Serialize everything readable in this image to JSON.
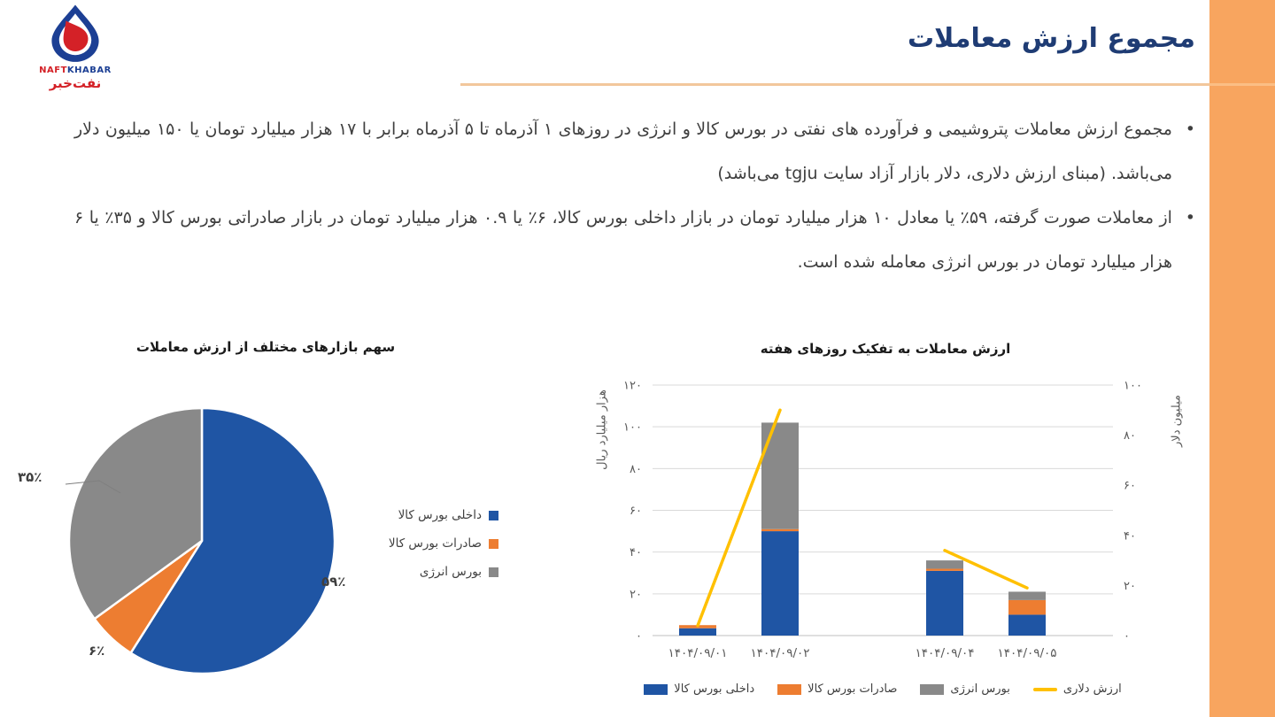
{
  "header": {
    "title": "مجموع ارزش معاملات"
  },
  "logo": {
    "text_en_1": "NAFT",
    "text_en_2": "KHABAR",
    "text_fa": "نفت‌خبر"
  },
  "bullets": [
    {
      "text": "مجموع ارزش معاملات پتروشیمی و فرآورده های نفتی در بورس کالا و انرژی در روزهای ۱ آذرماه تا ۵ آذرماه برابر با ۱۷ هزار میلیارد تومان یا ۱۵۰ میلیون دلار می‌باشد. (مبنای ارزش دلاری، دلار بازار آزاد سایت tgju می‌باشد)"
    },
    {
      "text": "از معاملات صورت گرفته، ۵۹٪ یا معادل ۱۰ هزار میلیارد تومان در بازار داخلی بورس کالا، ۶٪ یا ۰.۹ هزار میلیارد تومان در بازار صادراتی بورس کالا و ۳۵٪ یا ۶ هزار میلیارد تومان در بورس انرژی معامله شده است."
    }
  ],
  "colors": {
    "accent_orange": "#F8A55F",
    "title_navy": "#1F3C74",
    "series_blue": "#1F55A4",
    "series_orange": "#ED7D31",
    "series_gray": "#898989",
    "series_yellow": "#FFC000",
    "gridline": "#D9D9D9",
    "axis_text": "#595959"
  },
  "chart_data": [
    {
      "type": "pie",
      "title": "سهم بازارهای مختلف از ارزش معاملات",
      "labels": [
        "داخلی بورس کالا",
        "صادرات بورس کالا",
        "بورس انرژی"
      ],
      "values": [
        59,
        6,
        35
      ],
      "value_labels": [
        "۵۹٪",
        "۶٪",
        "۳۵٪"
      ],
      "colors": [
        "#1F55A4",
        "#ED7D31",
        "#898989"
      ],
      "start_angle": "top",
      "direction": "clockwise",
      "legend_position": "right"
    },
    {
      "type": "bar",
      "subtype": "stacked-columns-with-line",
      "title": "ارزش معاملات به تفکیک روزهای هفته",
      "categories": [
        "۱۴۰۴/۰۹/۰۱",
        "۱۴۰۴/۰۹/۰۲",
        "",
        "۱۴۰۴/۰۹/۰۴",
        "۱۴۰۴/۰۹/۰۵"
      ],
      "series": [
        {
          "name": "داخلی بورس کالا",
          "color": "#1F55A4",
          "values": [
            3.5,
            50,
            null,
            31,
            10
          ]
        },
        {
          "name": "صادرات بورس کالا",
          "color": "#ED7D31",
          "values": [
            1.5,
            1,
            null,
            1,
            7
          ]
        },
        {
          "name": "بورس انرژی",
          "color": "#898989",
          "values": [
            0,
            51,
            null,
            4,
            4
          ]
        }
      ],
      "line_series": {
        "name": "ارزش دلاری",
        "color": "#FFC000",
        "axis": "right",
        "values": [
          4,
          90,
          null,
          34,
          19
        ]
      },
      "left_axis": {
        "title": "هزار میلیارد ریال",
        "min": 0,
        "max": 120,
        "step": 20,
        "ticks": [
          "۰",
          "۲۰",
          "۴۰",
          "۶۰",
          "۸۰",
          "۱۰۰",
          "۱۲۰"
        ]
      },
      "right_axis": {
        "title": "میلیون دلار",
        "min": 0,
        "max": 100,
        "step": 20,
        "ticks": [
          "۰",
          "۲۰",
          "۴۰",
          "۶۰",
          "۸۰",
          "۱۰۰"
        ]
      },
      "grid": true,
      "legend_position": "bottom"
    }
  ]
}
